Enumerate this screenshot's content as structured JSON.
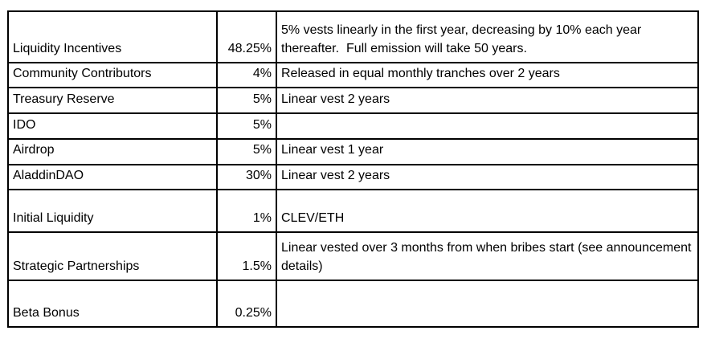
{
  "colors": {
    "background": "#ffffff",
    "grid_border": "#000000",
    "text": "#000000"
  },
  "table": {
    "name": "token-allocation",
    "columns": [
      "allocation",
      "percent",
      "vesting_notes"
    ],
    "rows": [
      {
        "name": "Liquidity Incentives",
        "pct": "48.25%",
        "desc": "5% vests linearly in the first year, decreasing by 10% each year thereafter.  Full emission will take 50 years."
      },
      {
        "name": "Community Contributors",
        "pct": "4%",
        "desc": "Released in equal monthly tranches over 2 years"
      },
      {
        "name": "Treasury Reserve",
        "pct": "5%",
        "desc": "Linear vest 2 years"
      },
      {
        "name": "IDO",
        "pct": "5%",
        "desc": ""
      },
      {
        "name": "Airdrop",
        "pct": "5%",
        "desc": "Linear vest 1 year"
      },
      {
        "name": "AladdinDAO",
        "pct": "30%",
        "desc": "Linear vest 2 years"
      },
      {
        "name": "Initial Liquidity",
        "pct": "1%",
        "desc": "CLEV/ETH"
      },
      {
        "name": "Strategic Partnerships",
        "pct": "1.5%",
        "desc": "Linear vested over 3 months from when bribes start (see announcement details)"
      },
      {
        "name": "Beta Bonus",
        "pct": "0.25%",
        "desc": ""
      }
    ]
  }
}
